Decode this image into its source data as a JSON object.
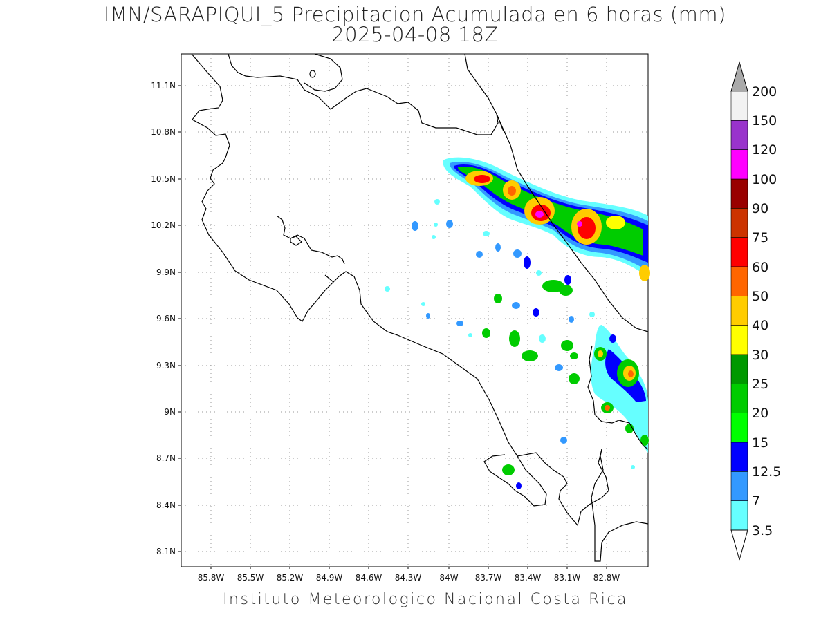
{
  "title": {
    "line1": "IMN/SARAPIQUI_5 Precipitacion Acumulada en 6 horas (mm)",
    "line2": "2025-04-08 18Z"
  },
  "footer": "Instituto Meteorologico Nacional Costa Rica",
  "axes": {
    "lat_labels": [
      "11.1N",
      "10.8N",
      "10.5N",
      "10.2N",
      "9.9N",
      "9.6N",
      "9.3N",
      "9N",
      "8.7N",
      "8.4N",
      "8.1N"
    ],
    "lon_labels": [
      "85.8W",
      "85.5W",
      "85.2W",
      "84.9W",
      "84.6W",
      "84.3W",
      "84W",
      "83.7W",
      "83.4W",
      "83.1W",
      "82.8W"
    ]
  },
  "colorbar": {
    "labels": [
      "3.5",
      "7",
      "12.5",
      "15",
      "20",
      "25",
      "30",
      "40",
      "50",
      "60",
      "75",
      "90",
      "100",
      "120",
      "150",
      "200"
    ],
    "colors": [
      "#ffffff",
      "#66ffff",
      "#3399ff",
      "#0000ff",
      "#00ff00",
      "#00cc00",
      "#009900",
      "#ffff00",
      "#ffcc00",
      "#ff6600",
      "#ff0000",
      "#cc3300",
      "#990000",
      "#ff00ff",
      "#9933cc",
      "#f2f2f2",
      "#aaaaaa"
    ]
  }
}
